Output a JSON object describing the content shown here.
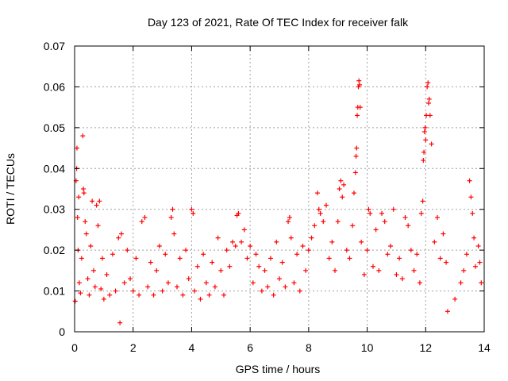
{
  "chart_data": {
    "type": "scatter",
    "title": "Day 123 of 2021, Rate Of TEC Index for receiver falk",
    "xlabel": "GPS time / hours",
    "ylabel": "ROTI / TECUs",
    "xlim": [
      0,
      14
    ],
    "ylim": [
      0,
      0.07
    ],
    "x_ticks": [
      0,
      2,
      4,
      6,
      8,
      10,
      12,
      14
    ],
    "y_ticks": [
      0,
      0.01,
      0.02,
      0.03,
      0.04,
      0.05,
      0.06,
      0.07
    ],
    "x_tick_labels": [
      "0",
      "2",
      "4",
      "6",
      "8",
      "10",
      "12",
      "14"
    ],
    "y_tick_labels": [
      "0",
      "0.01",
      "0.02",
      "0.03",
      "0.04",
      "0.05",
      "0.06",
      "0.07"
    ],
    "grid": true,
    "marker": "+",
    "marker_color": "#ff0000",
    "series": [
      {
        "points": [
          [
            0.02,
            0.0075
          ],
          [
            0.05,
            0.037
          ],
          [
            0.07,
            0.04
          ],
          [
            0.08,
            0.045
          ],
          [
            0.1,
            0.028
          ],
          [
            0.12,
            0.02
          ],
          [
            0.14,
            0.033
          ],
          [
            0.16,
            0.012
          ],
          [
            0.2,
            0.0095
          ],
          [
            0.24,
            0.018
          ],
          [
            0.28,
            0.048
          ],
          [
            0.3,
            0.035
          ],
          [
            0.32,
            0.034
          ],
          [
            0.36,
            0.027
          ],
          [
            0.4,
            0.024
          ],
          [
            0.45,
            0.013
          ],
          [
            0.5,
            0.009
          ],
          [
            0.55,
            0.021
          ],
          [
            0.6,
            0.032
          ],
          [
            0.65,
            0.015
          ],
          [
            0.7,
            0.011
          ],
          [
            0.75,
            0.031
          ],
          [
            0.8,
            0.026
          ],
          [
            0.85,
            0.032
          ],
          [
            0.9,
            0.0105
          ],
          [
            0.95,
            0.018
          ],
          [
            1.0,
            0.008
          ],
          [
            1.1,
            0.014
          ],
          [
            1.2,
            0.009
          ],
          [
            1.3,
            0.019
          ],
          [
            1.4,
            0.01
          ],
          [
            1.5,
            0.023
          ],
          [
            1.55,
            0.0022
          ],
          [
            1.6,
            0.024
          ],
          [
            1.7,
            0.012
          ],
          [
            1.8,
            0.02
          ],
          [
            1.9,
            0.013
          ],
          [
            2.0,
            0.01
          ],
          [
            2.1,
            0.018
          ],
          [
            2.2,
            0.009
          ],
          [
            2.3,
            0.027
          ],
          [
            2.4,
            0.028
          ],
          [
            2.5,
            0.011
          ],
          [
            2.6,
            0.017
          ],
          [
            2.7,
            0.009
          ],
          [
            2.8,
            0.015
          ],
          [
            2.9,
            0.021
          ],
          [
            3.0,
            0.01
          ],
          [
            3.1,
            0.019
          ],
          [
            3.2,
            0.012
          ],
          [
            3.3,
            0.028
          ],
          [
            3.35,
            0.03
          ],
          [
            3.4,
            0.024
          ],
          [
            3.5,
            0.011
          ],
          [
            3.6,
            0.018
          ],
          [
            3.7,
            0.009
          ],
          [
            3.8,
            0.02
          ],
          [
            3.9,
            0.013
          ],
          [
            4.0,
            0.03
          ],
          [
            4.05,
            0.029
          ],
          [
            4.1,
            0.01
          ],
          [
            4.2,
            0.016
          ],
          [
            4.3,
            0.008
          ],
          [
            4.4,
            0.019
          ],
          [
            4.5,
            0.012
          ],
          [
            4.6,
            0.009
          ],
          [
            4.7,
            0.017
          ],
          [
            4.8,
            0.011
          ],
          [
            4.9,
            0.023
          ],
          [
            5.0,
            0.015
          ],
          [
            5.1,
            0.009
          ],
          [
            5.2,
            0.02
          ],
          [
            5.3,
            0.016
          ],
          [
            5.4,
            0.022
          ],
          [
            5.5,
            0.021
          ],
          [
            5.55,
            0.0285
          ],
          [
            5.6,
            0.029
          ],
          [
            5.7,
            0.022
          ],
          [
            5.8,
            0.025
          ],
          [
            5.9,
            0.018
          ],
          [
            6.0,
            0.021
          ],
          [
            6.1,
            0.012
          ],
          [
            6.2,
            0.019
          ],
          [
            6.3,
            0.016
          ],
          [
            6.4,
            0.01
          ],
          [
            6.5,
            0.015
          ],
          [
            6.6,
            0.011
          ],
          [
            6.7,
            0.018
          ],
          [
            6.8,
            0.009
          ],
          [
            6.9,
            0.022
          ],
          [
            7.0,
            0.013
          ],
          [
            7.1,
            0.017
          ],
          [
            7.2,
            0.011
          ],
          [
            7.3,
            0.027
          ],
          [
            7.35,
            0.028
          ],
          [
            7.4,
            0.023
          ],
          [
            7.5,
            0.012
          ],
          [
            7.6,
            0.019
          ],
          [
            7.7,
            0.01
          ],
          [
            7.8,
            0.021
          ],
          [
            7.9,
            0.015
          ],
          [
            8.0,
            0.02
          ],
          [
            8.1,
            0.023
          ],
          [
            8.2,
            0.026
          ],
          [
            8.3,
            0.034
          ],
          [
            8.35,
            0.03
          ],
          [
            8.4,
            0.029
          ],
          [
            8.5,
            0.027
          ],
          [
            8.6,
            0.031
          ],
          [
            8.7,
            0.018
          ],
          [
            8.8,
            0.022
          ],
          [
            8.9,
            0.015
          ],
          [
            9.0,
            0.027
          ],
          [
            9.05,
            0.035
          ],
          [
            9.1,
            0.037
          ],
          [
            9.15,
            0.033
          ],
          [
            9.2,
            0.036
          ],
          [
            9.3,
            0.02
          ],
          [
            9.4,
            0.018
          ],
          [
            9.5,
            0.026
          ],
          [
            9.55,
            0.034
          ],
          [
            9.6,
            0.039
          ],
          [
            9.62,
            0.043
          ],
          [
            9.64,
            0.045
          ],
          [
            9.66,
            0.053
          ],
          [
            9.68,
            0.055
          ],
          [
            9.7,
            0.06
          ],
          [
            9.72,
            0.0615
          ],
          [
            9.74,
            0.0605
          ],
          [
            9.76,
            0.055
          ],
          [
            9.8,
            0.022
          ],
          [
            9.9,
            0.014
          ],
          [
            10.0,
            0.02
          ],
          [
            10.05,
            0.03
          ],
          [
            10.1,
            0.029
          ],
          [
            10.2,
            0.016
          ],
          [
            10.3,
            0.025
          ],
          [
            10.4,
            0.015
          ],
          [
            10.5,
            0.029
          ],
          [
            10.6,
            0.027
          ],
          [
            10.7,
            0.019
          ],
          [
            10.8,
            0.021
          ],
          [
            10.9,
            0.03
          ],
          [
            11.0,
            0.014
          ],
          [
            11.1,
            0.018
          ],
          [
            11.2,
            0.013
          ],
          [
            11.3,
            0.028
          ],
          [
            11.4,
            0.026
          ],
          [
            11.5,
            0.02
          ],
          [
            11.6,
            0.015
          ],
          [
            11.7,
            0.019
          ],
          [
            11.8,
            0.012
          ],
          [
            11.85,
            0.029
          ],
          [
            11.9,
            0.032
          ],
          [
            11.92,
            0.042
          ],
          [
            11.94,
            0.044
          ],
          [
            11.96,
            0.049
          ],
          [
            11.98,
            0.05
          ],
          [
            12.0,
            0.047
          ],
          [
            12.02,
            0.053
          ],
          [
            12.05,
            0.06
          ],
          [
            12.08,
            0.061
          ],
          [
            12.1,
            0.056
          ],
          [
            12.12,
            0.057
          ],
          [
            12.15,
            0.053
          ],
          [
            12.2,
            0.046
          ],
          [
            12.3,
            0.022
          ],
          [
            12.4,
            0.028
          ],
          [
            12.5,
            0.018
          ],
          [
            12.6,
            0.024
          ],
          [
            12.7,
            0.017
          ],
          [
            12.75,
            0.005
          ],
          [
            13.0,
            0.008
          ],
          [
            13.2,
            0.012
          ],
          [
            13.3,
            0.015
          ],
          [
            13.4,
            0.019
          ],
          [
            13.5,
            0.037
          ],
          [
            13.55,
            0.033
          ],
          [
            13.6,
            0.029
          ],
          [
            13.65,
            0.023
          ],
          [
            13.7,
            0.016
          ],
          [
            13.8,
            0.021
          ],
          [
            13.85,
            0.017
          ],
          [
            13.9,
            0.012
          ]
        ]
      }
    ]
  }
}
